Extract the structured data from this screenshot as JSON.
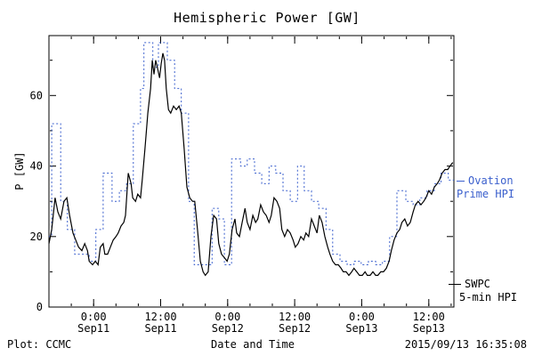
{
  "chart_data": {
    "type": "line",
    "title": "Hemispheric Power [GW]",
    "xlabel": "Date and Time",
    "ylabel": "P [GW]",
    "x_range_hours": [
      0,
      72.5
    ],
    "y_range": [
      0,
      77
    ],
    "y_ticks": [
      0,
      20,
      40,
      60
    ],
    "y_minor_ticks": [
      10,
      30,
      50,
      70
    ],
    "grid": false,
    "legend_position": "right-outside",
    "x_ticks": [
      {
        "hours": 8,
        "time": "0:00",
        "date": "Sep11"
      },
      {
        "hours": 20,
        "time": "12:00",
        "date": "Sep11"
      },
      {
        "hours": 32,
        "time": "0:00",
        "date": "Sep12"
      },
      {
        "hours": 44,
        "time": "12:00",
        "date": "Sep12"
      },
      {
        "hours": 56,
        "time": "0:00",
        "date": "Sep13"
      },
      {
        "hours": 68,
        "time": "12:00",
        "date": "Sep13"
      }
    ],
    "series": [
      {
        "name": "SWPC 5-min HPI",
        "color": "#000000",
        "step": false,
        "points": [
          [
            0,
            18
          ],
          [
            0.5,
            22
          ],
          [
            1.1,
            31
          ],
          [
            1.6,
            27
          ],
          [
            2.1,
            25
          ],
          [
            2.7,
            30
          ],
          [
            3.2,
            31
          ],
          [
            3.7,
            26
          ],
          [
            4.3,
            21
          ],
          [
            4.8,
            19
          ],
          [
            5.3,
            17
          ],
          [
            5.9,
            16
          ],
          [
            6.4,
            18
          ],
          [
            6.9,
            16
          ],
          [
            7.2,
            13
          ],
          [
            7.8,
            12
          ],
          [
            8.3,
            13
          ],
          [
            8.8,
            12
          ],
          [
            9.2,
            17
          ],
          [
            9.7,
            18
          ],
          [
            10,
            15
          ],
          [
            10.5,
            15
          ],
          [
            11,
            17
          ],
          [
            11.5,
            19
          ],
          [
            12,
            20
          ],
          [
            12.4,
            21
          ],
          [
            12.9,
            23
          ],
          [
            13.4,
            24
          ],
          [
            13.7,
            26
          ],
          [
            14.2,
            38
          ],
          [
            14.7,
            35
          ],
          [
            15,
            31
          ],
          [
            15.5,
            30
          ],
          [
            15.9,
            32
          ],
          [
            16.4,
            31
          ],
          [
            16.7,
            36
          ],
          [
            17.2,
            45
          ],
          [
            17.7,
            55
          ],
          [
            18.2,
            62
          ],
          [
            18.5,
            70
          ],
          [
            18.8,
            66
          ],
          [
            19.1,
            70
          ],
          [
            19.4,
            68
          ],
          [
            19.8,
            65
          ],
          [
            20.1,
            69
          ],
          [
            20.4,
            72
          ],
          [
            20.7,
            70
          ],
          [
            21,
            62
          ],
          [
            21.4,
            56
          ],
          [
            21.8,
            55
          ],
          [
            22.3,
            57
          ],
          [
            22.8,
            56
          ],
          [
            23.3,
            57
          ],
          [
            23.7,
            55
          ],
          [
            24.2,
            45
          ],
          [
            24.7,
            34
          ],
          [
            25.2,
            31
          ],
          [
            25.7,
            30
          ],
          [
            26.1,
            30
          ],
          [
            26.6,
            22
          ],
          [
            27.1,
            13
          ],
          [
            27.6,
            10
          ],
          [
            28,
            9
          ],
          [
            28.5,
            10
          ],
          [
            29,
            20
          ],
          [
            29.5,
            26
          ],
          [
            30,
            25
          ],
          [
            30.4,
            18
          ],
          [
            30.9,
            15
          ],
          [
            31.4,
            14
          ],
          [
            31.9,
            13
          ],
          [
            32.3,
            15
          ],
          [
            32.8,
            22
          ],
          [
            33.3,
            25
          ],
          [
            33.6,
            21
          ],
          [
            34.1,
            20
          ],
          [
            34.6,
            24
          ],
          [
            35.1,
            28
          ],
          [
            35.5,
            24
          ],
          [
            36,
            22
          ],
          [
            36.5,
            26
          ],
          [
            37,
            24
          ],
          [
            37.4,
            25
          ],
          [
            37.9,
            29
          ],
          [
            38.4,
            27
          ],
          [
            38.9,
            26
          ],
          [
            39.4,
            24
          ],
          [
            39.8,
            26
          ],
          [
            40.3,
            31
          ],
          [
            40.8,
            30
          ],
          [
            41.3,
            28
          ],
          [
            41.7,
            22
          ],
          [
            42.2,
            20
          ],
          [
            42.7,
            22
          ],
          [
            43.2,
            21
          ],
          [
            43.7,
            19
          ],
          [
            44.1,
            17
          ],
          [
            44.6,
            18
          ],
          [
            45.1,
            20
          ],
          [
            45.6,
            19
          ],
          [
            46,
            21
          ],
          [
            46.5,
            20
          ],
          [
            47,
            25
          ],
          [
            47.5,
            23
          ],
          [
            48,
            21
          ],
          [
            48.4,
            26
          ],
          [
            48.9,
            24
          ],
          [
            49.4,
            20
          ],
          [
            49.9,
            17
          ],
          [
            50.3,
            15
          ],
          [
            50.8,
            13
          ],
          [
            51.3,
            12
          ],
          [
            51.8,
            12
          ],
          [
            52.3,
            11
          ],
          [
            52.7,
            10
          ],
          [
            53.2,
            10
          ],
          [
            53.7,
            9
          ],
          [
            54.2,
            10
          ],
          [
            54.6,
            11
          ],
          [
            55.1,
            10
          ],
          [
            55.6,
            9
          ],
          [
            56.1,
            9
          ],
          [
            56.6,
            10
          ],
          [
            57,
            9
          ],
          [
            57.5,
            9
          ],
          [
            58,
            10
          ],
          [
            58.5,
            9
          ],
          [
            58.9,
            9
          ],
          [
            59.4,
            10
          ],
          [
            59.9,
            10
          ],
          [
            60.4,
            11
          ],
          [
            60.9,
            13
          ],
          [
            61.3,
            16
          ],
          [
            61.8,
            19
          ],
          [
            62.3,
            21
          ],
          [
            62.8,
            22
          ],
          [
            63.2,
            24
          ],
          [
            63.7,
            25
          ],
          [
            64.2,
            23
          ],
          [
            64.7,
            24
          ],
          [
            65.2,
            27
          ],
          [
            65.6,
            29
          ],
          [
            66.1,
            30
          ],
          [
            66.6,
            29
          ],
          [
            67.1,
            30
          ],
          [
            67.5,
            31
          ],
          [
            68,
            33
          ],
          [
            68.5,
            32
          ],
          [
            69,
            34
          ],
          [
            69.5,
            35
          ],
          [
            69.9,
            36
          ],
          [
            70.4,
            38
          ],
          [
            70.9,
            39
          ],
          [
            71.4,
            39
          ],
          [
            71.8,
            40
          ],
          [
            72.3,
            41
          ]
        ]
      },
      {
        "name": "Ovation Prime HPI",
        "color": "#3a5fcd",
        "step": true,
        "points": [
          [
            0,
            20
          ],
          [
            0.5,
            52
          ],
          [
            2.1,
            30
          ],
          [
            3.3,
            22
          ],
          [
            4.6,
            15
          ],
          [
            7.2,
            13
          ],
          [
            8.4,
            22
          ],
          [
            9.7,
            38
          ],
          [
            11.3,
            30
          ],
          [
            12.6,
            33
          ],
          [
            13.9,
            35
          ],
          [
            15.1,
            52
          ],
          [
            16.4,
            62
          ],
          [
            17,
            75
          ],
          [
            18.6,
            68
          ],
          [
            19.6,
            75
          ],
          [
            21.2,
            70
          ],
          [
            22.5,
            62
          ],
          [
            23.7,
            55
          ],
          [
            25,
            30
          ],
          [
            26,
            12
          ],
          [
            29.2,
            28
          ],
          [
            30.4,
            25
          ],
          [
            31.4,
            12
          ],
          [
            32.7,
            42
          ],
          [
            34.3,
            40
          ],
          [
            35.5,
            42
          ],
          [
            36.8,
            38
          ],
          [
            38.1,
            35
          ],
          [
            39.4,
            40
          ],
          [
            40.6,
            38
          ],
          [
            41.9,
            33
          ],
          [
            43.2,
            30
          ],
          [
            44.5,
            40
          ],
          [
            45.7,
            33
          ],
          [
            47,
            30
          ],
          [
            48.3,
            28
          ],
          [
            49.6,
            22
          ],
          [
            50.8,
            15
          ],
          [
            52.1,
            13
          ],
          [
            53.4,
            12
          ],
          [
            54.6,
            13
          ],
          [
            55.9,
            12
          ],
          [
            57.2,
            13
          ],
          [
            58.5,
            12
          ],
          [
            59.7,
            13
          ],
          [
            61,
            20
          ],
          [
            62.3,
            33
          ],
          [
            63.9,
            30
          ],
          [
            65.2,
            29
          ],
          [
            66.4,
            31
          ],
          [
            67.7,
            33
          ],
          [
            69,
            35
          ],
          [
            70.2,
            38
          ],
          [
            71.5,
            36
          ]
        ]
      }
    ]
  },
  "legend": {
    "ovation": {
      "line1": "Ovation",
      "line2": "Prime HPI"
    },
    "swpc": {
      "line1": "SWPC",
      "line2": "5-min HPI"
    }
  },
  "footer": {
    "left": "Plot: CCMC",
    "right": "2015/09/13 16:35:08"
  }
}
